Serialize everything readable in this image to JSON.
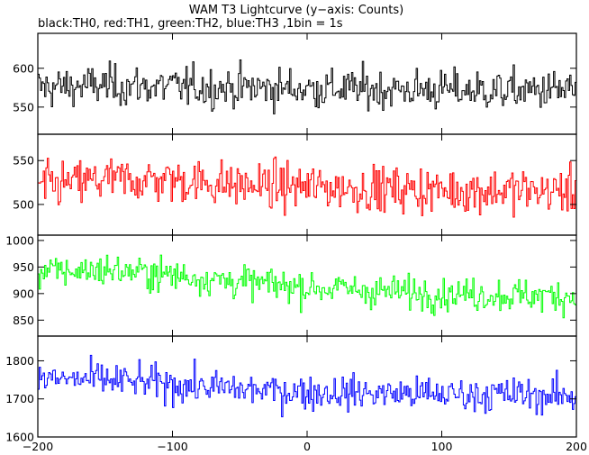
{
  "chart_data": {
    "type": "line",
    "title": "WAM T3 Lightcurve (y−axis: Counts)",
    "subtitle": "black:TH0, red:TH1, green:TH2, blue:TH3 ,1bin = 1s",
    "xlabel": "",
    "ylabel": "",
    "xlim": [
      -200,
      200
    ],
    "x_ticks": [
      -200,
      -100,
      0,
      100,
      200
    ],
    "x_tick_labels": [
      "−200",
      "−100",
      "0",
      "100",
      "200"
    ],
    "bin_width": 1,
    "grid": false,
    "panels": [
      {
        "name": "TH0",
        "color": "#000000",
        "ylim": [
          515,
          645
        ],
        "y_ticks": [
          550,
          600
        ],
        "y_tick_labels": [
          "550",
          "600"
        ],
        "profile": [
          [
            -200,
            575
          ],
          [
            -150,
            578
          ],
          [
            -100,
            576
          ],
          [
            -50,
            575
          ],
          [
            0,
            574
          ],
          [
            50,
            573
          ],
          [
            100,
            572
          ],
          [
            150,
            571
          ],
          [
            200,
            572
          ]
        ],
        "noise": 22
      },
      {
        "name": "TH1",
        "color": "#ff0000",
        "ylim": [
          465,
          580
        ],
        "y_ticks": [
          500,
          550
        ],
        "y_tick_labels": [
          "500",
          "550"
        ],
        "profile": [
          [
            -200,
            520
          ],
          [
            -150,
            528
          ],
          [
            -100,
            528
          ],
          [
            -50,
            522
          ],
          [
            0,
            520
          ],
          [
            50,
            518
          ],
          [
            100,
            516
          ],
          [
            150,
            516
          ],
          [
            200,
            515
          ]
        ],
        "noise": 22
      },
      {
        "name": "TH2",
        "color": "#00ff00",
        "ylim": [
          820,
          1010
        ],
        "y_ticks": [
          850,
          900,
          950,
          1000
        ],
        "y_tick_labels": [
          "850",
          "900",
          "950",
          "1000"
        ],
        "profile": [
          [
            -200,
            940
          ],
          [
            -150,
            945
          ],
          [
            -100,
            935
          ],
          [
            -50,
            922
          ],
          [
            0,
            912
          ],
          [
            50,
            905
          ],
          [
            100,
            900
          ],
          [
            150,
            897
          ],
          [
            200,
            895
          ]
        ],
        "noise": 26
      },
      {
        "name": "TH3",
        "color": "#0000ff",
        "ylim": [
          1600,
          1865
        ],
        "y_ticks": [
          1600,
          1700,
          1800
        ],
        "y_tick_labels": [
          "1600",
          "1700",
          "1800"
        ],
        "profile": [
          [
            -200,
            1752
          ],
          [
            -150,
            1750
          ],
          [
            -100,
            1738
          ],
          [
            -50,
            1725
          ],
          [
            0,
            1718
          ],
          [
            50,
            1715
          ],
          [
            100,
            1712
          ],
          [
            150,
            1712
          ],
          [
            200,
            1705
          ]
        ],
        "noise": 38
      }
    ]
  }
}
